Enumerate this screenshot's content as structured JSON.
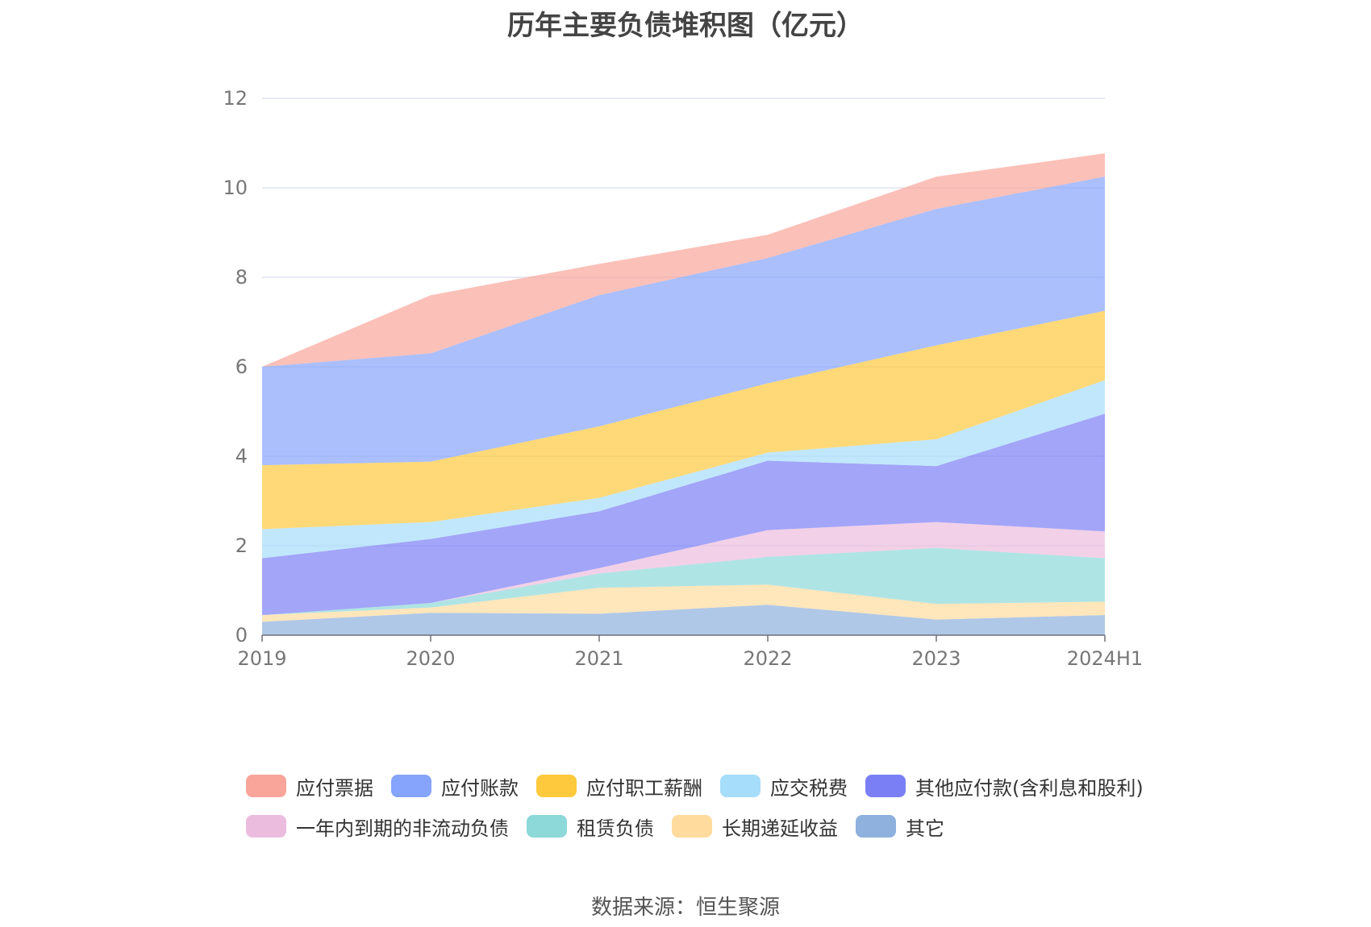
{
  "chart_data": {
    "type": "area",
    "stacked": true,
    "title": "历年主要负债堆积图（亿元）",
    "source": "数据来源：恒生聚源",
    "categories": [
      "2019",
      "2020",
      "2021",
      "2022",
      "2023",
      "2024H1"
    ],
    "ylim": [
      0,
      12
    ],
    "yticks": [
      "0",
      "2",
      "4",
      "6",
      "8",
      "10",
      "12"
    ],
    "grid": true,
    "legend_position": "bottom",
    "series": [
      {
        "name": "其它",
        "color": "#8eb1dd",
        "values": [
          0.3,
          0.5,
          0.48,
          0.68,
          0.35,
          0.45
        ]
      },
      {
        "name": "长期递延收益",
        "color": "#ffdb9e",
        "values": [
          0.15,
          0.12,
          0.58,
          0.45,
          0.35,
          0.3
        ]
      },
      {
        "name": "租赁负债",
        "color": "#8dd8d8",
        "values": [
          0.0,
          0.1,
          0.32,
          0.62,
          1.25,
          0.97
        ]
      },
      {
        "name": "一年内到期的非流动负债",
        "color": "#ecbcde",
        "values": [
          0.0,
          0.0,
          0.12,
          0.6,
          0.58,
          0.6
        ]
      },
      {
        "name": "其他应付款(含利息和股利)",
        "color": "#7b7ff5",
        "values": [
          1.27,
          1.43,
          1.27,
          1.55,
          1.25,
          2.63
        ]
      },
      {
        "name": "应交税费",
        "color": "#a6ddfb",
        "values": [
          0.65,
          0.38,
          0.3,
          0.18,
          0.6,
          0.75
        ]
      },
      {
        "name": "应付职工薪酬",
        "color": "#ffc93d",
        "values": [
          1.43,
          1.35,
          1.6,
          1.55,
          2.1,
          1.55
        ]
      },
      {
        "name": "应付账款",
        "color": "#86a4fb",
        "values": [
          2.2,
          2.42,
          2.93,
          2.8,
          3.05,
          3.0
        ]
      },
      {
        "name": "应付票据",
        "color": "#f9a59a",
        "values": [
          0.0,
          1.3,
          0.7,
          0.52,
          0.72,
          0.52
        ]
      }
    ]
  },
  "legend": {
    "row1": [
      "应付票据",
      "应付账款",
      "应付职工薪酬",
      "应交税费",
      "其他应付款(含利息和股利)"
    ],
    "row2": [
      "一年内到期的非流动负债",
      "租赁负债",
      "长期递延收益",
      "其它"
    ]
  }
}
